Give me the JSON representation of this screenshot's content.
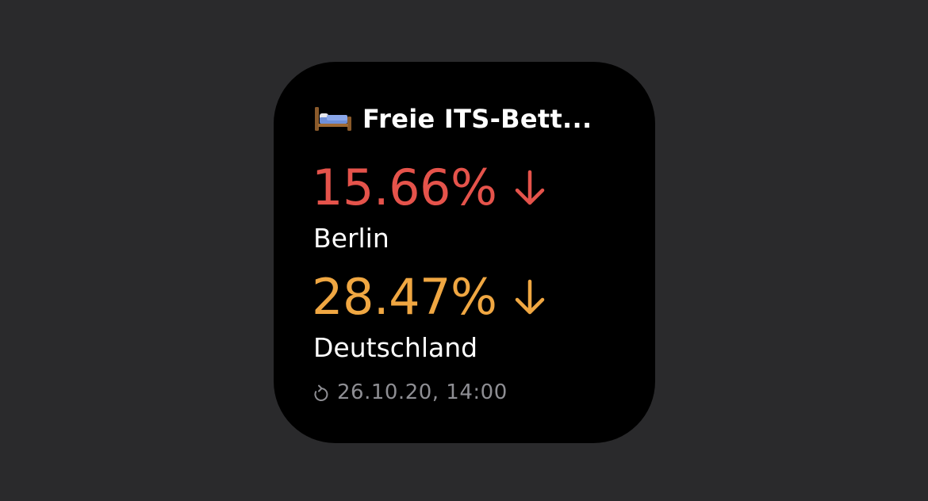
{
  "widget": {
    "title": "Freie ITS-Bett...",
    "icon": "bed-icon",
    "metrics": [
      {
        "value": "15.66%",
        "trend": "down",
        "trend_icon": "arrow-down-icon",
        "label": "Berlin",
        "color": "#e5534b"
      },
      {
        "value": "28.47%",
        "trend": "down",
        "trend_icon": "arrow-down-icon",
        "label": "Deutschland",
        "color": "#f0a742"
      }
    ],
    "updated": "26.10.20, 14:00",
    "updated_icon": "refresh-icon",
    "colors": {
      "background": "#000000",
      "page_background": "#2a2a2c",
      "secondary_text": "#8e8e93"
    }
  }
}
